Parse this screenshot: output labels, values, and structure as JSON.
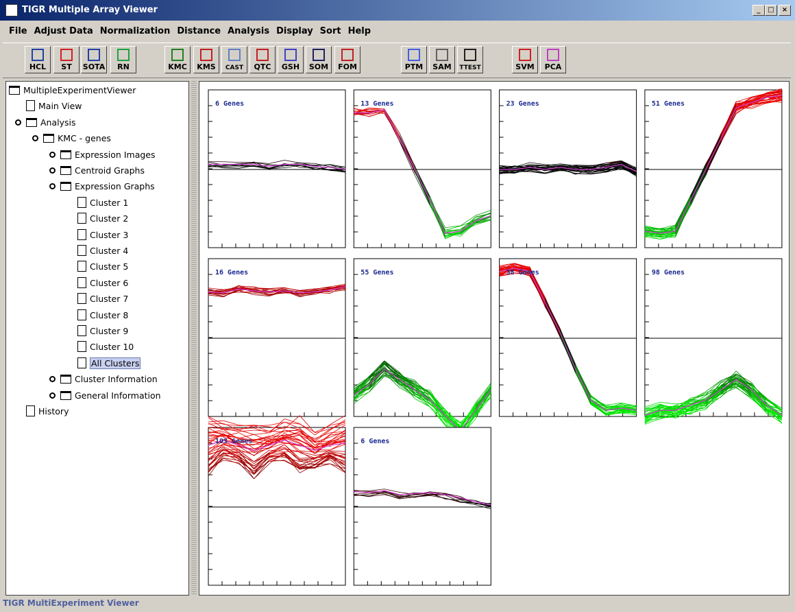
{
  "window": {
    "title": "TIGR Multiple Array Viewer"
  },
  "menu": [
    "File",
    "Adjust Data",
    "Normalization",
    "Distance",
    "Analysis",
    "Display",
    "Sort",
    "Help"
  ],
  "toolbar": [
    "HCL",
    "ST",
    "SOTA",
    "RN",
    "KMC",
    "KMS",
    "CAST",
    "QTC",
    "GSH",
    "SOM",
    "FOM",
    "PTM",
    "SAM",
    "TTEST",
    "SVM",
    "PCA"
  ],
  "tree": [
    "MultipleExperimentViewer",
    "Main View",
    "Analysis",
    "KMC - genes",
    "Expression Images",
    "Centroid Graphs",
    "Expression Graphs",
    "Cluster 1",
    "Cluster 2",
    "Cluster 3",
    "Cluster 4",
    "Cluster 5",
    "Cluster 6",
    "Cluster 7",
    "Cluster 8",
    "Cluster 9",
    "Cluster 10",
    "All Clusters",
    "Cluster Information",
    "General Information",
    "History"
  ],
  "clusters": [
    "6 Genes",
    "13 Genes",
    "23 Genes",
    "51 Genes",
    "16 Genes",
    "55 Genes",
    "38 Genes",
    "98 Genes",
    "103 Genes",
    "6 Genes"
  ],
  "status": "TIGR MultiExperiment Viewer"
}
